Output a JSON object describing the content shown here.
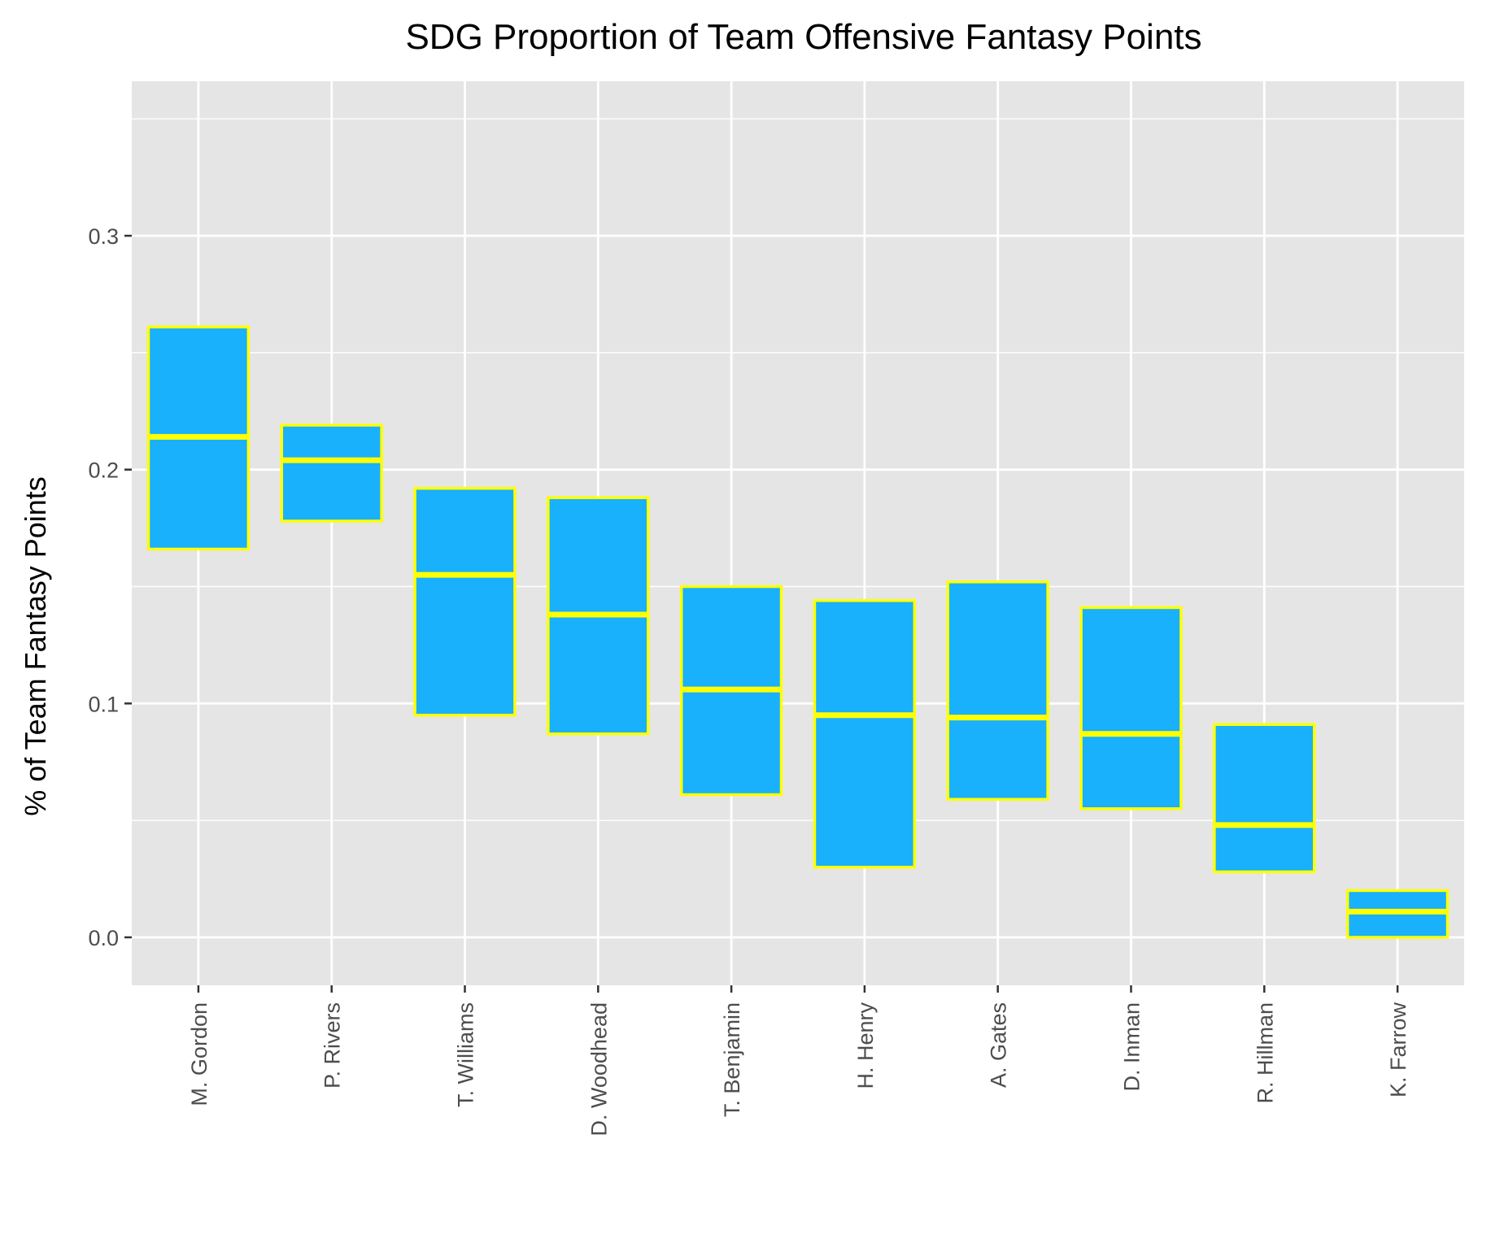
{
  "chart_data": {
    "type": "box",
    "title": "SDG Proportion of Team Offensive Fantasy Points",
    "xlabel": "",
    "ylabel": "% of Team Fantasy Points",
    "ylim": [
      -0.02,
      0.365
    ],
    "yticks": [
      0.0,
      0.1,
      0.2,
      0.3
    ],
    "ytick_labels": [
      "0.0",
      "0.1",
      "0.2",
      "0.3"
    ],
    "grid": true,
    "legend": "none",
    "categories": [
      "M. Gordon",
      "P. Rivers",
      "T. Williams",
      "D. Woodhead",
      "T. Benjamin",
      "H. Henry",
      "A. Gates",
      "D. Inman",
      "R. Hillman",
      "K. Farrow"
    ],
    "boxes": [
      {
        "lower": 0.166,
        "median": 0.214,
        "upper": 0.261
      },
      {
        "lower": 0.178,
        "median": 0.204,
        "upper": 0.219
      },
      {
        "lower": 0.095,
        "median": 0.155,
        "upper": 0.192
      },
      {
        "lower": 0.087,
        "median": 0.138,
        "upper": 0.188
      },
      {
        "lower": 0.061,
        "median": 0.106,
        "upper": 0.15
      },
      {
        "lower": 0.03,
        "median": 0.095,
        "upper": 0.144
      },
      {
        "lower": 0.059,
        "median": 0.094,
        "upper": 0.152
      },
      {
        "lower": 0.055,
        "median": 0.087,
        "upper": 0.141
      },
      {
        "lower": 0.028,
        "median": 0.048,
        "upper": 0.091
      },
      {
        "lower": 0.0,
        "median": 0.011,
        "upper": 0.02
      }
    ],
    "colors": {
      "box_fill": "#19b0fc",
      "box_outline": "#ffff00",
      "panel_background": "#e5e5e5",
      "grid": "#ffffff",
      "tick_text": "#4d4d4d"
    }
  }
}
